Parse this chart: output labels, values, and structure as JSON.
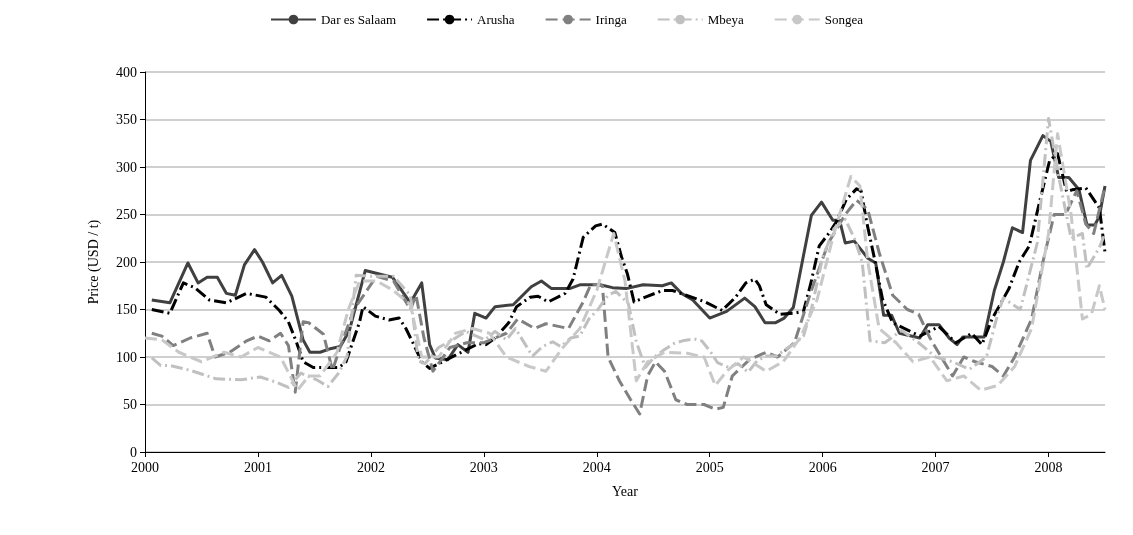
{
  "chart_data": {
    "type": "line",
    "xlabel": "Year",
    "ylabel": "Price (USD / t)",
    "xlim": [
      2000,
      2008.5
    ],
    "xticks": [
      2000,
      2001,
      2002,
      2003,
      2004,
      2005,
      2006,
      2007,
      2008
    ],
    "ylim": [
      0,
      400
    ],
    "yticks": [
      0,
      50,
      100,
      150,
      200,
      250,
      300,
      350,
      400
    ],
    "grid": "y",
    "legend": "top",
    "marker": "none",
    "series": [
      {
        "name": "Dar es Salaam",
        "color": "#404040",
        "line_style": "solid",
        "x": [
          2000.06,
          2000.22,
          2000.38,
          2000.47,
          2000.55,
          2000.64,
          2000.72,
          2000.8,
          2000.88,
          2000.97,
          2001.04,
          2001.13,
          2001.21,
          2001.3,
          2001.4,
          2001.46,
          2001.55,
          2001.65,
          2001.73,
          2001.81,
          2001.95,
          2002.19,
          2002.35,
          2002.45,
          2002.52,
          2002.57,
          2002.68,
          2002.77,
          2002.86,
          2002.92,
          2003.02,
          2003.1,
          2003.26,
          2003.42,
          2003.51,
          2003.6,
          2003.76,
          2003.85,
          2004.03,
          2004.14,
          2004.26,
          2004.41,
          2004.58,
          2004.66,
          2004.75,
          2004.85,
          2005.0,
          2005.15,
          2005.31,
          2005.4,
          2005.49,
          2005.58,
          2005.66,
          2005.74,
          2005.9,
          2005.99,
          2006.09,
          2006.15,
          2006.2,
          2006.28,
          2006.4,
          2006.47,
          2006.54,
          2006.61,
          2006.68,
          2006.86,
          2006.93,
          2007.03,
          2007.12,
          2007.19,
          2007.24,
          2007.43,
          2007.52,
          2007.6,
          2007.68,
          2007.77,
          2007.84,
          2007.95,
          2008.02,
          2008.09,
          2008.18,
          2008.27,
          2008.34,
          2008.41,
          2008.45,
          2008.5
        ],
        "values": [
          160,
          157,
          199,
          178,
          184,
          184,
          167,
          165,
          197,
          213,
          200,
          178,
          186,
          164,
          118,
          105,
          105,
          109,
          111,
          128,
          191,
          184,
          157,
          178,
          113,
          99,
          97,
          113,
          105,
          146,
          141,
          153,
          155,
          174,
          180,
          172,
          172,
          176,
          176,
          173,
          172,
          176,
          175,
          178,
          167,
          160,
          141,
          148,
          162,
          153,
          136,
          136,
          141,
          152,
          249,
          263,
          244,
          244,
          220,
          222,
          204,
          199,
          144,
          144,
          125,
          120,
          134,
          134,
          120,
          113,
          121,
          121,
          170,
          200,
          236,
          231,
          307,
          333,
          327,
          289,
          289,
          276,
          239,
          239,
          248,
          280
        ]
      },
      {
        "name": "Arusha",
        "color": "#000000",
        "line_style": "dashdot",
        "x": [
          2000.06,
          2000.22,
          2000.34,
          2000.44,
          2000.57,
          2000.72,
          2000.9,
          2001.07,
          2001.19,
          2001.27,
          2001.34,
          2001.4,
          2001.49,
          2001.61,
          2001.72,
          2001.78,
          2001.9,
          2001.93,
          2002.04,
          2002.16,
          2002.25,
          2002.31,
          2002.38,
          2002.45,
          2002.52,
          2002.95,
          2003.02,
          2003.1,
          2003.22,
          2003.29,
          2003.41,
          2003.48,
          2003.57,
          2003.72,
          2003.79,
          2003.88,
          2003.99,
          2004.05,
          2004.16,
          2004.22,
          2004.27,
          2004.33,
          2004.43,
          2004.58,
          2004.67,
          2004.79,
          2004.96,
          2005.11,
          2005.23,
          2005.32,
          2005.4,
          2005.44,
          2005.5,
          2005.62,
          2005.74,
          2005.83,
          2005.89,
          2005.97,
          2006.06,
          2006.12,
          2006.21,
          2006.3,
          2006.34,
          2006.39,
          2006.46,
          2006.53,
          2006.62,
          2006.74,
          2006.86,
          2007.03,
          2007.18,
          2007.32,
          2007.41,
          2007.5,
          2007.65,
          2007.74,
          2007.83,
          2007.92,
          2008.01,
          2008.08,
          2008.16,
          2008.21,
          2008.33,
          2008.45,
          2008.5
        ],
        "values": [
          150,
          146,
          178,
          173,
          160,
          157,
          167,
          163,
          149,
          137,
          116,
          95,
          89,
          89,
          89,
          95,
          137,
          153,
          143,
          139,
          141,
          130,
          113,
          95,
          88,
          114,
          113,
          120,
          136,
          153,
          163,
          164,
          158,
          167,
          182,
          226,
          238,
          240,
          231,
          205,
          188,
          158,
          163,
          170,
          170,
          165,
          158,
          149,
          163,
          178,
          182,
          175,
          155,
          145,
          146,
          148,
          175,
          217,
          231,
          242,
          266,
          277,
          275,
          242,
          203,
          161,
          136,
          129,
          122,
          132,
          115,
          125,
          113,
          140,
          172,
          200,
          217,
          263,
          307,
          314,
          274,
          276,
          278,
          257,
          210
        ]
      },
      {
        "name": "Iringa",
        "color": "#808080",
        "line_style": "dashed",
        "x": [
          2000.06,
          2000.15,
          2000.25,
          2000.4,
          2000.55,
          2000.62,
          2000.75,
          2000.9,
          2001.0,
          2001.1,
          2001.2,
          2001.27,
          2001.33,
          2001.4,
          2001.45,
          2001.58,
          2001.66,
          2001.73,
          2001.85,
          2002.05,
          2002.2,
          2002.35,
          2002.4,
          2002.47,
          2002.55,
          2002.7,
          2002.85,
          2003.0,
          2003.2,
          2003.3,
          2003.45,
          2003.55,
          2003.75,
          2003.88,
          2003.95,
          2004.05,
          2004.1,
          2004.2,
          2004.3,
          2004.38,
          2004.45,
          2004.52,
          2004.6,
          2004.7,
          2004.8,
          2004.95,
          2005.05,
          2005.12,
          2005.2,
          2005.35,
          2005.5,
          2005.6,
          2005.75,
          2005.9,
          2006.05,
          2006.2,
          2006.3,
          2006.4,
          2006.5,
          2006.62,
          2006.75,
          2006.85,
          2006.95,
          2007.05,
          2007.15,
          2007.25,
          2007.35,
          2007.5,
          2007.6,
          2007.7,
          2007.85,
          2007.95,
          2008.05,
          2008.15,
          2008.25,
          2008.33,
          2008.4,
          2008.5
        ],
        "values": [
          125,
          122,
          112,
          120,
          125,
          100,
          105,
          117,
          122,
          117,
          125,
          112,
          63,
          137,
          136,
          124,
          86,
          111,
          150,
          185,
          180,
          150,
          165,
          120,
          85,
          110,
          115,
          115,
          125,
          140,
          130,
          135,
          130,
          158,
          177,
          175,
          100,
          75,
          55,
          40,
          80,
          95,
          85,
          55,
          50,
          50,
          45,
          47,
          80,
          97,
          105,
          100,
          115,
          170,
          220,
          250,
          265,
          255,
          210,
          165,
          150,
          145,
          120,
          100,
          80,
          100,
          95,
          90,
          80,
          100,
          140,
          200,
          250,
          250,
          275,
          240,
          230,
          280
        ]
      },
      {
        "name": "Mbeya",
        "color": "#c0c0c0",
        "line_style": "dashdot",
        "x": [
          2000.06,
          2000.14,
          2000.22,
          2000.4,
          2000.63,
          2000.85,
          2001.02,
          2001.15,
          2001.27,
          2001.38,
          2001.52,
          2001.62,
          2001.72,
          2001.79,
          2001.87,
          2002.0,
          2002.2,
          2002.35,
          2002.42,
          2002.48,
          2002.6,
          2002.75,
          2002.84,
          2003.01,
          2003.1,
          2003.2,
          2003.28,
          2003.43,
          2003.52,
          2003.61,
          2003.68,
          2003.77,
          2003.85,
          2003.93,
          2004.01,
          2004.1,
          2004.17,
          2004.28,
          2004.35,
          2004.43,
          2004.51,
          2004.59,
          2004.68,
          2004.76,
          2004.86,
          2004.93,
          2005.01,
          2005.07,
          2005.17,
          2005.25,
          2005.34,
          2005.42,
          2005.5,
          2005.59,
          2005.67,
          2005.74,
          2005.83,
          2005.9,
          2006.0,
          2006.1,
          2006.2,
          2006.28,
          2006.35,
          2006.42,
          2006.55,
          2006.7,
          2006.85,
          2007.0,
          2007.15,
          2007.3,
          2007.45,
          2007.55,
          2007.6,
          2007.75,
          2007.9,
          2008.0,
          2008.09,
          2008.2,
          2008.3,
          2008.34,
          2008.45,
          2008.5
        ],
        "values": [
          99,
          91,
          91,
          86,
          77,
          76,
          79,
          74,
          68,
          83,
          76,
          69,
          84,
          101,
          186,
          185,
          185,
          165,
          96,
          93,
          110,
          120,
          127,
          118,
          127,
          118,
          130,
          101,
          111,
          116,
          111,
          120,
          122,
          140,
          150,
          165,
          169,
          156,
          116,
          89,
          100,
          107,
          114,
          117,
          119,
          117,
          105,
          94,
          89,
          93,
          84,
          96,
          101,
          101,
          108,
          113,
          122,
          150,
          205,
          235,
          245,
          225,
          200,
          117,
          115,
          128,
          115,
          100,
          95,
          87,
          100,
          145,
          162,
          150,
          220,
          351,
          290,
          225,
          230,
          193,
          215,
          230
        ]
      },
      {
        "name": "Songea",
        "color": "#c8c8c8",
        "line_style": "dashed",
        "x": [
          2000.0,
          2000.15,
          2000.3,
          2000.5,
          2000.7,
          2000.85,
          2001.0,
          2001.2,
          2001.35,
          2001.45,
          2001.55,
          2001.7,
          2001.8,
          2001.9,
          2002.05,
          2002.2,
          2002.35,
          2002.45,
          2002.6,
          2002.75,
          2002.9,
          2003.05,
          2003.2,
          2003.4,
          2003.55,
          2003.7,
          2003.85,
          2004.0,
          2004.15,
          2004.25,
          2004.35,
          2004.45,
          2004.6,
          2004.8,
          2004.95,
          2005.05,
          2005.15,
          2005.3,
          2005.5,
          2005.65,
          2005.8,
          2005.95,
          2006.1,
          2006.25,
          2006.33,
          2006.4,
          2006.5,
          2006.65,
          2006.8,
          2006.95,
          2007.1,
          2007.25,
          2007.4,
          2007.55,
          2007.7,
          2007.85,
          2008.0,
          2008.08,
          2008.2,
          2008.3,
          2008.38,
          2008.45,
          2008.5
        ],
        "values": [
          120,
          118,
          105,
          95,
          105,
          100,
          110,
          100,
          65,
          80,
          80,
          105,
          150,
          180,
          180,
          170,
          155,
          100,
          100,
          125,
          130,
          125,
          100,
          90,
          85,
          110,
          130,
          170,
          230,
          180,
          75,
          95,
          105,
          104,
          100,
          70,
          85,
          100,
          85,
          95,
          120,
          160,
          230,
          290,
          280,
          200,
          130,
          115,
          95,
          100,
          75,
          80,
          65,
          70,
          90,
          130,
          230,
          335,
          250,
          140,
          145,
          175,
          150
        ]
      }
    ]
  }
}
